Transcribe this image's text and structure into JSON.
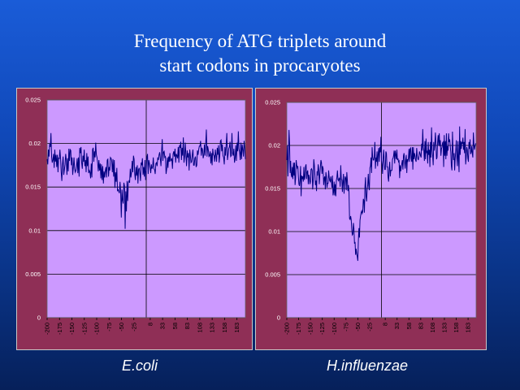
{
  "title": {
    "line1": "Frequency of ATG triplets around",
    "line2": "start codons in procaryotes"
  },
  "colors": {
    "plot_bg": "#cc99ff",
    "line": "#000080",
    "panel": "#8f2f56",
    "grid": "#000000"
  },
  "chart_data": [
    {
      "type": "line",
      "caption": "E.coli",
      "ylim": [
        0,
        0.025
      ],
      "yticks": [
        "0",
        "0.005",
        "0.01",
        "0.015",
        "0.02",
        "0.025"
      ],
      "xticks": [
        "-200",
        "-175",
        "-150",
        "-125",
        "-100",
        "-75",
        "-50",
        "-25",
        "8",
        "33",
        "58",
        "83",
        "108",
        "133",
        "158",
        "183"
      ],
      "xrange": [
        -200,
        200
      ],
      "vline": 0,
      "series": [
        {
          "values": [
            0.0182,
            0.0176,
            0.0193,
            0.0185,
            0.02,
            0.0196,
            0.0212,
            0.0185,
            0.0178,
            0.0181,
            0.0188,
            0.0172,
            0.0193,
            0.0179,
            0.0187,
            0.0173,
            0.0187,
            0.0167,
            0.0184,
            0.0182,
            0.0193,
            0.0183,
            0.0167,
            0.0157,
            0.0176,
            0.0185,
            0.0164,
            0.017,
            0.0176,
            0.0188,
            0.0181,
            0.0164,
            0.0183,
            0.0168,
            0.0194,
            0.018,
            0.0193,
            0.0192,
            0.0175,
            0.0184,
            0.0164,
            0.0173,
            0.0184,
            0.0171,
            0.0167,
            0.0169,
            0.0174,
            0.0183,
            0.0166,
            0.0184,
            0.0162,
            0.0195,
            0.0189,
            0.0196,
            0.0178,
            0.0171,
            0.0186,
            0.0179,
            0.0193,
            0.0174,
            0.0181,
            0.0167,
            0.0189,
            0.0174,
            0.0185,
            0.0166,
            0.0169,
            0.0167,
            0.016,
            0.0177,
            0.0161,
            0.0193,
            0.0195,
            0.0179,
            0.0191,
            0.0184,
            0.0201,
            0.0187,
            0.0184,
            0.0178,
            0.0168,
            0.0181,
            0.0169,
            0.0177,
            0.016,
            0.0176,
            0.0158,
            0.0174,
            0.0154,
            0.0168,
            0.0161,
            0.0169,
            0.0173,
            0.0161,
            0.0181,
            0.0182,
            0.0162,
            0.0173,
            0.0169,
            0.0184,
            0.0183,
            0.018,
            0.0167,
            0.0182,
            0.0162,
            0.0181,
            0.0149,
            0.0167,
            0.0156,
            0.0172,
            0.0146,
            0.0147,
            0.0145,
            0.0143,
            0.0156,
            0.0144,
            0.0115,
            0.0147,
            0.0135,
            0.0131,
            0.0155,
            0.0151,
            0.0102,
            0.0145,
            0.0122,
            0.0157,
            0.0134,
            0.0155,
            0.0157,
            0.0155,
            0.0171,
            0.0161,
            0.0167,
            0.018,
            0.0167,
            0.0186,
            0.0182,
            0.0165,
            0.0158,
            0.0173,
            0.0163,
            0.0175,
            0.0154,
            0.017,
            0.0172,
            0.0166,
            0.0157,
            0.0178,
            0.0175,
            0.0183,
            0.0164,
            0.0173,
            0.0162,
            0.0181,
            0.0158,
            0.0169,
            0.0184,
            0.0188,
            0.0165,
            0.0181,
            0.0177,
            0.0172,
            0.0166,
            0.0176,
            0.0171,
            0.0173,
            0.0184,
            0.0171,
            0.017,
            0.0165,
            0.0177,
            0.0178,
            0.0174,
            0.0184,
            0.0181,
            0.0187,
            0.019,
            0.0183,
            0.0174,
            0.0191,
            0.0205,
            0.018,
            0.019,
            0.0191,
            0.0184,
            0.0185,
            0.0165,
            0.0171,
            0.0184,
            0.0172,
            0.0185,
            0.0179,
            0.0189,
            0.018,
            0.0181,
            0.0183,
            0.0171,
            0.0188,
            0.0191,
            0.0185,
            0.0194,
            0.0178,
            0.0188,
            0.0186,
            0.0183,
            0.0196,
            0.0178,
            0.0198,
            0.0195,
            0.0202,
            0.0181,
            0.0195,
            0.0186,
            0.0207,
            0.0178,
            0.0185,
            0.0201,
            0.0187,
            0.0174,
            0.0192,
            0.0184,
            0.0189,
            0.0169,
            0.0193,
            0.0186,
            0.0178,
            0.0179,
            0.0187,
            0.0193,
            0.0175,
            0.0175,
            0.0183,
            0.0185,
            0.0173,
            0.0175,
            0.0192,
            0.0187,
            0.0193,
            0.0197,
            0.0197,
            0.0203,
            0.0186,
            0.0195,
            0.0193,
            0.0183,
            0.0187,
            0.0199,
            0.0186,
            0.02,
            0.0216,
            0.0185,
            0.0197,
            0.0193,
            0.0185,
            0.0186,
            0.0191,
            0.0177,
            0.0189,
            0.0175,
            0.0194,
            0.0187,
            0.0186,
            0.0179,
            0.0193,
            0.0186,
            0.0179,
            0.0195,
            0.0187,
            0.0198,
            0.0178,
            0.0187,
            0.0203,
            0.0204,
            0.0191,
            0.0199,
            0.0186,
            0.0184,
            0.0176,
            0.0196,
            0.0186,
            0.0199,
            0.0212,
            0.0181,
            0.0187,
            0.0194,
            0.0196,
            0.0202,
            0.0185,
            0.0186,
            0.0212,
            0.0189,
            0.0186,
            0.0194,
            0.0178,
            0.0183,
            0.0198,
            0.018,
            0.0201,
            0.0191,
            0.0214,
            0.0194,
            0.019,
            0.0181,
            0.0201,
            0.0182,
            0.0199,
            0.0193,
            0.0185,
            0.0203,
            0.0195,
            0.0182
          ]
        }
      ]
    },
    {
      "type": "line",
      "caption": "H.influenzae",
      "ylim": [
        0,
        0.025
      ],
      "yticks": [
        "0",
        "0.005",
        "0.01",
        "0.015",
        "0.02",
        "0.025"
      ],
      "xticks": [
        "-200",
        "-175",
        "-150",
        "-125",
        "-100",
        "-75",
        "-50",
        "-25",
        "8",
        "33",
        "58",
        "83",
        "108",
        "133",
        "158",
        "183"
      ],
      "xrange": [
        -200,
        200
      ],
      "vline": 0,
      "series": [
        {
          "values": [
            0.0183,
            0.02,
            0.0164,
            0.0187,
            0.0218,
            0.0202,
            0.0168,
            0.0182,
            0.0166,
            0.0163,
            0.0175,
            0.0161,
            0.018,
            0.0165,
            0.018,
            0.0154,
            0.0162,
            0.0183,
            0.0177,
            0.0174,
            0.0176,
            0.0164,
            0.0155,
            0.0153,
            0.0161,
            0.0176,
            0.0141,
            0.0165,
            0.0161,
            0.0164,
            0.0158,
            0.0175,
            0.016,
            0.0163,
            0.0176,
            0.0178,
            0.0161,
            0.0169,
            0.0171,
            0.0155,
            0.0166,
            0.0163,
            0.0155,
            0.0158,
            0.0172,
            0.0173,
            0.0171,
            0.0149,
            0.0159,
            0.0184,
            0.0177,
            0.0166,
            0.0154,
            0.0159,
            0.0147,
            0.017,
            0.0165,
            0.0178,
            0.0172,
            0.0155,
            0.0166,
            0.0175,
            0.0183,
            0.018,
            0.0167,
            0.0176,
            0.0173,
            0.0154,
            0.0162,
            0.0164,
            0.0149,
            0.0169,
            0.0164,
            0.0151,
            0.0156,
            0.0156,
            0.0171,
            0.0163,
            0.0159,
            0.0158,
            0.0164,
            0.0159,
            0.0151,
            0.0165,
            0.0142,
            0.0146,
            0.0158,
            0.0142,
            0.0155,
            0.0141,
            0.0159,
            0.0163,
            0.0171,
            0.016,
            0.0159,
            0.0162,
            0.0161,
            0.0152,
            0.0177,
            0.0161,
            0.016,
            0.0146,
            0.0159,
            0.0167,
            0.0144,
            0.0158,
            0.0164,
            0.0162,
            0.0148,
            0.0169,
            0.016,
            0.0147,
            0.0154,
            0.0146,
            0.0115,
            0.0114,
            0.0118,
            0.0114,
            0.0103,
            0.0096,
            0.0097,
            0.011,
            0.0103,
            0.0086,
            0.0088,
            0.0073,
            0.008,
            0.0074,
            0.0071,
            0.0066,
            0.0089,
            0.0104,
            0.0093,
            0.0113,
            0.0118,
            0.0122,
            0.0124,
            0.0121,
            0.0123,
            0.0138,
            0.0136,
            0.0122,
            0.0152,
            0.0163,
            0.0141,
            0.0135,
            0.0148,
            0.0154,
            0.0167,
            0.0153,
            0.0148,
            0.0174,
            0.0176,
            0.0186,
            0.0168,
            0.0198,
            0.0187,
            0.0183,
            0.0183,
            0.0187,
            0.0204,
            0.0173,
            0.0186,
            0.0181,
            0.0193,
            0.0176,
            0.019,
            0.0197,
            0.0181,
            0.0198,
            0.0192,
            0.021,
            0.0183,
            0.0178,
            0.0167,
            0.0185,
            0.0195,
            0.0181,
            0.0172,
            0.0172,
            0.0193,
            0.0191,
            0.0175,
            0.0175,
            0.0163,
            0.0158,
            0.0173,
            0.0181,
            0.0164,
            0.0171,
            0.0171,
            0.0171,
            0.0184,
            0.0185,
            0.0188,
            0.0194,
            0.0179,
            0.0194,
            0.0189,
            0.0184,
            0.0195,
            0.0183,
            0.0185,
            0.0181,
            0.0182,
            0.0162,
            0.0177,
            0.017,
            0.0175,
            0.0179,
            0.0183,
            0.0172,
            0.0188,
            0.0191,
            0.0181,
            0.0173,
            0.0183,
            0.0189,
            0.0168,
            0.0184,
            0.0182,
            0.0185,
            0.0196,
            0.0181,
            0.0196,
            0.0197,
            0.0185,
            0.0181,
            0.0198,
            0.0172,
            0.0198,
            0.0184,
            0.0191,
            0.0188,
            0.0183,
            0.0181,
            0.0197,
            0.0188,
            0.0185,
            0.0183,
            0.0187,
            0.0193,
            0.0191,
            0.0188,
            0.0186,
            0.0202,
            0.0194,
            0.0219,
            0.0198,
            0.0194,
            0.0182,
            0.0205,
            0.0184,
            0.0208,
            0.0192,
            0.0193,
            0.0179,
            0.0204,
            0.0189,
            0.0195,
            0.0175,
            0.0204,
            0.0186,
            0.0221,
            0.0195,
            0.0188,
            0.0177,
            0.0204,
            0.0194,
            0.0202,
            0.0215,
            0.0201,
            0.0184,
            0.0186,
            0.0204,
            0.0212,
            0.02,
            0.0214,
            0.0199,
            0.0206,
            0.0188,
            0.0196,
            0.0198,
            0.0203,
            0.0204,
            0.0175,
            0.0212,
            0.0188,
            0.0205,
            0.0184,
            0.0214,
            0.0188,
            0.0199,
            0.0194,
            0.0214,
            0.0204,
            0.0207,
            0.0199,
            0.0192,
            0.0176,
            0.0171,
            0.0216,
            0.0195,
            0.0183,
            0.0191,
            0.0171,
            0.0185,
            0.0194,
            0.0206,
            0.0185,
            0.0176,
            0.0205,
            0.0185,
            0.0169,
            0.0222,
            0.0189,
            0.0205,
            0.0196,
            0.0204,
            0.0202,
            0.0209,
            0.0195,
            0.0204,
            0.0191,
            0.0219,
            0.0178,
            0.0186,
            0.0198,
            0.0195,
            0.0185,
            0.0181,
            0.0204,
            0.0196,
            0.0207,
            0.019,
            0.0192,
            0.0199,
            0.0191,
            0.0186,
            0.0215,
            0.0201,
            0.0195,
            0.0199,
            0.0202,
            0.0202
          ]
        }
      ]
    }
  ]
}
